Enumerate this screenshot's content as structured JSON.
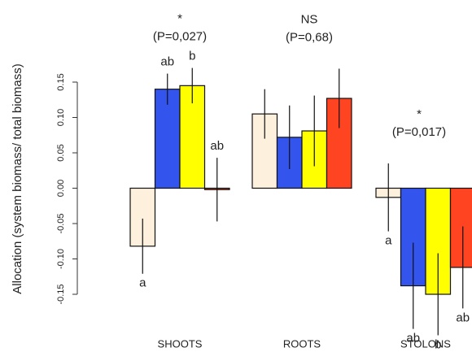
{
  "chart_data": {
    "type": "bar",
    "y_label": "Allocation (system biomass/ total biomass)",
    "categories": [
      "SHOOTS",
      "ROOTS",
      "STOLONS"
    ],
    "ylim": [
      -0.15,
      0.15
    ],
    "yticks": [
      -0.15,
      {
        "value": -0.1,
        "label": "-0.10"
      },
      -0.05,
      {
        "value": 0,
        "label": "0.00"
      },
      0.05,
      {
        "value": 0.1,
        "label": "0.10"
      },
      0.15
    ],
    "group_annotations": [
      {
        "mark": "*",
        "p_value": "(P=0,027)"
      },
      {
        "mark": "NS",
        "p_value": "(P=0,68)"
      },
      {
        "mark": "*",
        "p_value": "(P=0,017)"
      }
    ],
    "series": [
      {
        "color": "#fdf0dc",
        "values": [
          -0.082,
          0.105,
          -0.013
        ],
        "errors": [
          0.039,
          0.035,
          0.048
        ],
        "letters": [
          "a",
          null,
          "a"
        ]
      },
      {
        "color": "#3355ee",
        "values": [
          0.14,
          0.072,
          -0.138
        ],
        "errors": [
          0.022,
          0.045,
          0.061
        ],
        "letters": [
          "ab",
          null,
          "ab"
        ]
      },
      {
        "color": "#ffff00",
        "values": [
          0.145,
          0.081,
          -0.15
        ],
        "errors": [
          0.025,
          0.05,
          0.058
        ],
        "letters": [
          "b",
          null,
          "b"
        ]
      },
      {
        "color": "#ff4422",
        "values": [
          -0.002,
          0.127,
          -0.112
        ],
        "errors": [
          0.045,
          0.042,
          0.058
        ],
        "letters": [
          "ab",
          null,
          "ab"
        ]
      }
    ]
  }
}
